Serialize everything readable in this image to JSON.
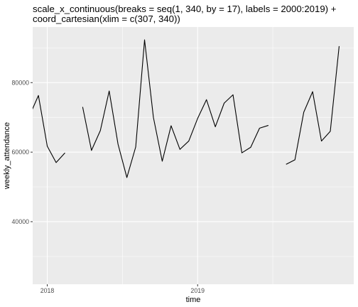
{
  "chart_data": {
    "type": "line",
    "title_lines": [
      "scale_x_continuous(breaks = seq(1, 340, by = 17), labels = 2000:2019) +",
      "coord_cartesian(xlim = c(307, 340))"
    ],
    "xlabel": "time",
    "ylabel": "weekly_attendance",
    "xlim": [
      305.35,
      341.65
    ],
    "ylim": [
      22000,
      96000
    ],
    "x_ticks": [
      {
        "value": 307,
        "label": "2018"
      },
      {
        "value": 324,
        "label": "2019"
      }
    ],
    "x_minor_ticks": [
      315.5,
      332.5
    ],
    "y_ticks": [
      {
        "value": 40000,
        "label": "40000"
      },
      {
        "value": 60000,
        "label": "60000"
      },
      {
        "value": 80000,
        "label": "80000"
      }
    ],
    "y_minor_ticks": [
      30000,
      50000,
      70000,
      90000
    ],
    "series": [
      {
        "x": [
          305,
          306,
          307,
          308,
          309,
          310,
          311,
          312,
          313,
          314,
          315,
          316,
          317,
          318,
          319,
          320,
          321,
          322,
          323,
          324,
          325,
          326,
          327,
          328,
          329,
          330,
          331,
          332,
          333,
          334,
          335,
          336,
          337,
          338,
          339,
          340
        ],
        "y": [
          70500,
          76300,
          61700,
          57000,
          59800,
          null,
          73000,
          60500,
          66200,
          77600,
          62300,
          52700,
          61500,
          92300,
          70000,
          57400,
          67600,
          60800,
          63200,
          69700,
          75100,
          67300,
          74100,
          76500,
          59800,
          61400,
          66900,
          67700,
          null,
          56500,
          57800,
          71500,
          77400,
          63200,
          66000,
          90500
        ]
      }
    ],
    "colors": {
      "panel": "#ebebeb",
      "grid": "#ffffff",
      "line": "#000000",
      "tick_label": "#4d4d4d",
      "tick_mark": "#333333"
    }
  }
}
